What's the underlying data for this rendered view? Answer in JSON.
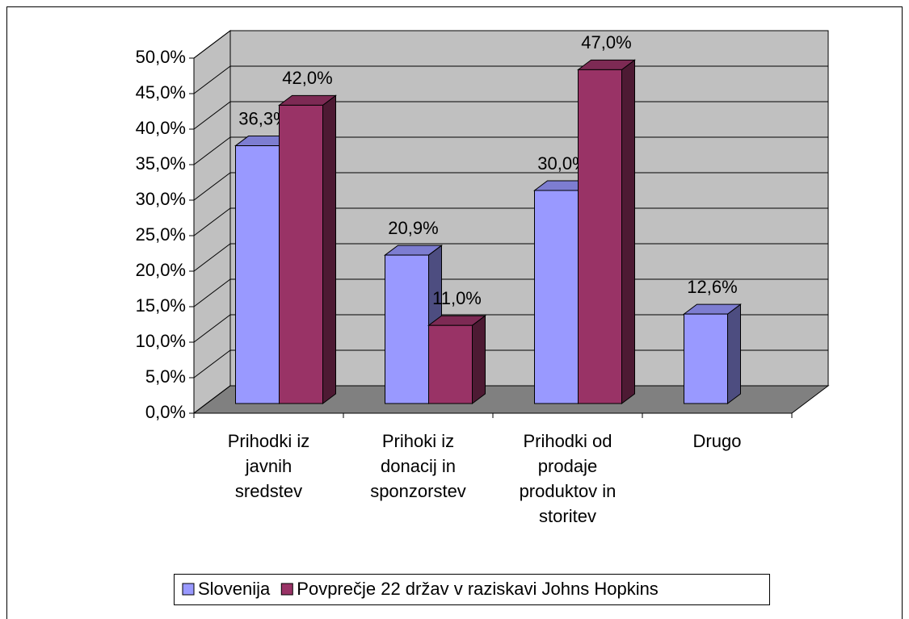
{
  "chart_data": {
    "type": "bar3d",
    "categories": [
      "Prihodki iz javnih sredstev",
      "Prihoki iz donacij in sponzorstev",
      "Prihodki od prodaje produktov in storitev",
      "Drugo"
    ],
    "series": [
      {
        "name": "Slovenija",
        "color": "#9999ff",
        "values": [
          36.3,
          20.9,
          30.0,
          12.6
        ],
        "value_labels": [
          "36,3%",
          "20,9%",
          "30,0%",
          "12,6%"
        ]
      },
      {
        "name": "Povprečje 22 držav v raziskavi Johns Hopkins",
        "color": "#993366",
        "values": [
          42.0,
          11.0,
          47.0,
          null
        ],
        "value_labels": [
          "42,0%",
          "11,0%",
          "47,0%",
          null
        ]
      }
    ],
    "ylim": [
      0,
      50
    ],
    "yticks": [
      {
        "value": 0,
        "label": "0,0%"
      },
      {
        "value": 5,
        "label": "5,0%"
      },
      {
        "value": 10,
        "label": "10,0%"
      },
      {
        "value": 15,
        "label": "15,0%"
      },
      {
        "value": 20,
        "label": "20,0%"
      },
      {
        "value": 25,
        "label": "25,0%"
      },
      {
        "value": 30,
        "label": "30,0%"
      },
      {
        "value": 35,
        "label": "35,0%"
      },
      {
        "value": 40,
        "label": "40,0%"
      },
      {
        "value": 45,
        "label": "45,0%"
      },
      {
        "value": 50,
        "label": "50,0%"
      }
    ],
    "grid": true,
    "legend": "bottom"
  }
}
